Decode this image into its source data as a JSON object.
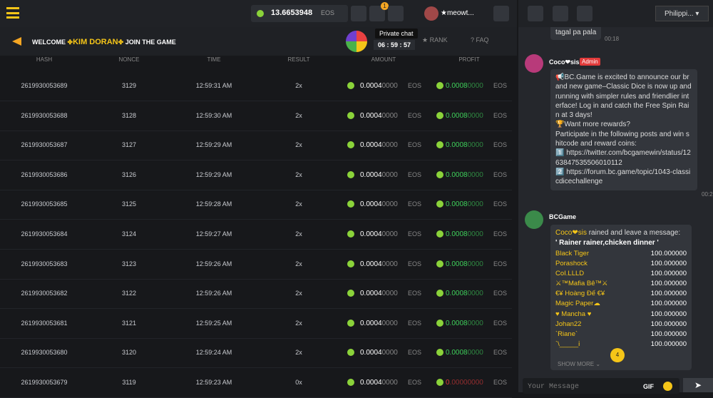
{
  "header": {
    "balance": "13.6653948",
    "currency": "EOS",
    "notification_count": "1",
    "username": "★meowt..."
  },
  "banner": {
    "welcome": "WELCOME",
    "name": "KIM DORAN",
    "join": "JOIN THE GAME",
    "tooltip": "Private chat",
    "timer": "06 : 59 : 57",
    "rank": "RANK",
    "faq": "FAQ"
  },
  "table": {
    "columns": [
      "HASH",
      "NONCE",
      "TIME",
      "RESULT",
      "AMOUNT",
      "PROFIT"
    ],
    "rows": [
      {
        "hash": "2619930053689",
        "nonce": "3129",
        "time": "12:59:31 AM",
        "result": "2x",
        "amount": [
          "0.0004",
          "0000"
        ],
        "amount_currency": "EOS",
        "profit": [
          "0.0008",
          "0000"
        ],
        "profit_currency": "EOS",
        "profit_color": "#3ecf5a"
      },
      {
        "hash": "2619930053688",
        "nonce": "3128",
        "time": "12:59:30 AM",
        "result": "2x",
        "amount": [
          "0.0004",
          "0000"
        ],
        "amount_currency": "EOS",
        "profit": [
          "0.0008",
          "0000"
        ],
        "profit_currency": "EOS",
        "profit_color": "#3ecf5a"
      },
      {
        "hash": "2619930053687",
        "nonce": "3127",
        "time": "12:59:29 AM",
        "result": "2x",
        "amount": [
          "0.0004",
          "0000"
        ],
        "amount_currency": "EOS",
        "profit": [
          "0.0008",
          "0000"
        ],
        "profit_currency": "EOS",
        "profit_color": "#3ecf5a"
      },
      {
        "hash": "2619930053686",
        "nonce": "3126",
        "time": "12:59:29 AM",
        "result": "2x",
        "amount": [
          "0.0004",
          "0000"
        ],
        "amount_currency": "EOS",
        "profit": [
          "0.0008",
          "0000"
        ],
        "profit_currency": "EOS",
        "profit_color": "#3ecf5a"
      },
      {
        "hash": "2619930053685",
        "nonce": "3125",
        "time": "12:59:28 AM",
        "result": "2x",
        "amount": [
          "0.0004",
          "0000"
        ],
        "amount_currency": "EOS",
        "profit": [
          "0.0008",
          "0000"
        ],
        "profit_currency": "EOS",
        "profit_color": "#3ecf5a"
      },
      {
        "hash": "2619930053684",
        "nonce": "3124",
        "time": "12:59:27 AM",
        "result": "2x",
        "amount": [
          "0.0004",
          "0000"
        ],
        "amount_currency": "EOS",
        "profit": [
          "0.0008",
          "0000"
        ],
        "profit_currency": "EOS",
        "profit_color": "#3ecf5a"
      },
      {
        "hash": "2619930053683",
        "nonce": "3123",
        "time": "12:59:26 AM",
        "result": "2x",
        "amount": [
          "0.0004",
          "0000"
        ],
        "amount_currency": "EOS",
        "profit": [
          "0.0008",
          "0000"
        ],
        "profit_currency": "EOS",
        "profit_color": "#3ecf5a"
      },
      {
        "hash": "2619930053682",
        "nonce": "3122",
        "time": "12:59:26 AM",
        "result": "2x",
        "amount": [
          "0.0004",
          "0000"
        ],
        "amount_currency": "EOS",
        "profit": [
          "0.0008",
          "0000"
        ],
        "profit_currency": "EOS",
        "profit_color": "#3ecf5a"
      },
      {
        "hash": "2619930053681",
        "nonce": "3121",
        "time": "12:59:25 AM",
        "result": "2x",
        "amount": [
          "0.0004",
          "0000"
        ],
        "amount_currency": "EOS",
        "profit": [
          "0.0008",
          "0000"
        ],
        "profit_currency": "EOS",
        "profit_color": "#3ecf5a"
      },
      {
        "hash": "2619930053680",
        "nonce": "3120",
        "time": "12:59:24 AM",
        "result": "2x",
        "amount": [
          "0.0004",
          "0000"
        ],
        "amount_currency": "EOS",
        "profit": [
          "0.0008",
          "0000"
        ],
        "profit_currency": "EOS",
        "profit_color": "#3ecf5a"
      },
      {
        "hash": "2619930053679",
        "nonce": "3119",
        "time": "12:59:23 AM",
        "result": "0x",
        "amount": [
          "0.0004",
          "0000"
        ],
        "amount_currency": "EOS",
        "profit": [
          "0",
          ".00000000"
        ],
        "profit_currency": "EOS",
        "profit_color": "#e23b3b"
      }
    ]
  },
  "chat": {
    "language": "Philippi...",
    "messages": [
      {
        "text": "tagal pa pala",
        "time": "00:18"
      },
      {
        "name": "Coco❤sis",
        "badge": "Admin",
        "paragraphs": [
          "📢BC.Game is excited to announce our brand new game–Classic Dice is now up and running with simpler rules and friendlier interface! Log in and catch the Free Spin Rain at 3 days!",
          "🏆Want more rewards?",
          "Participate in the following posts and win shitcode and reward coins:",
          "1️⃣ https://twitter.com/bcgamewin/status/1263847535506010112",
          "2️⃣ https://forum.bc.game/topic/1043-classicdicechallenge"
        ],
        "time": "00:2"
      },
      {
        "name": "BCGame",
        "rain_from": "Coco❤sis",
        "rain_text": " rained and leave a message:",
        "rain_message": "' Rainer rainer,chicken dinner '",
        "recipients": [
          {
            "name": "Black Tiger",
            "amount": "100.000000"
          },
          {
            "name": "Porashock",
            "amount": "100.000000"
          },
          {
            "name": "CoI.LLLD",
            "amount": "100.000000"
          },
          {
            "name": "⚔™Mafia Bê™⚔",
            "amount": "100.000000"
          },
          {
            "name": "€¥ Hoàng Đế €¥",
            "amount": "100.000000"
          },
          {
            "name": "Magic Paper☁",
            "amount": "100.000000"
          },
          {
            "name": "♥ Mancha ♥",
            "amount": "100.000000"
          },
          {
            "name": "Johan22",
            "amount": "100.000000"
          },
          {
            "name": "`Riane`",
            "amount": "100.000000"
          },
          {
            "name": "`\\_____Ꭵ",
            "amount": "100.000000"
          }
        ],
        "show_more": "SHOW MORE",
        "new_count": "4"
      }
    ],
    "input_placeholder": "Your Message",
    "gif": "GIF"
  }
}
